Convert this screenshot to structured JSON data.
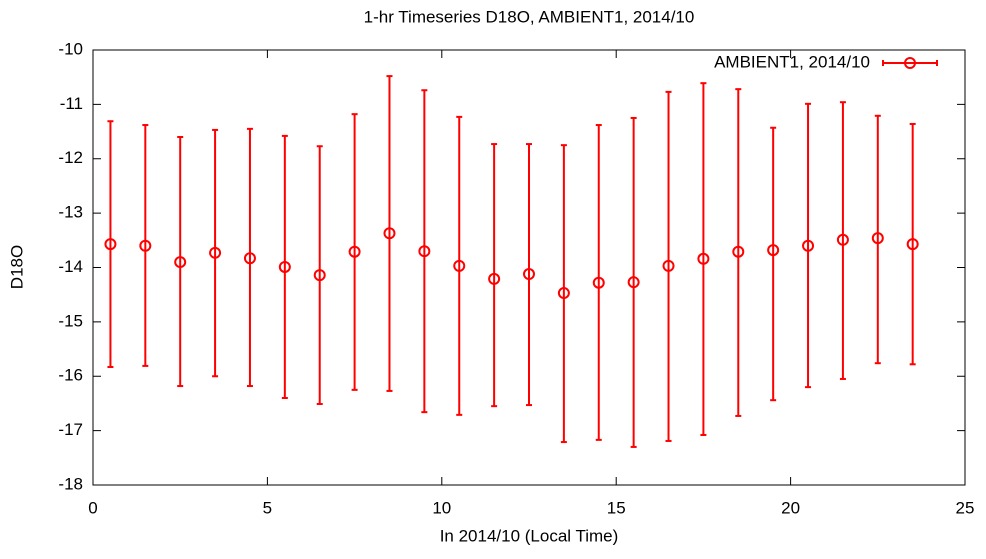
{
  "chart_data": {
    "type": "errorbar",
    "title": "1-hr Timeseries D18O, AMBIENT1, 2014/10",
    "x_label": "In 2014/10 (Local Time)",
    "y_label": "D18O",
    "xlim": [
      0,
      25
    ],
    "xticks": [
      0,
      5,
      10,
      15,
      20,
      25
    ],
    "ylim": [
      -18,
      -10
    ],
    "yticks": [
      -18,
      -17,
      -16,
      -15,
      -14,
      -13,
      -12,
      -11,
      -10
    ],
    "legend": "upper right",
    "series": [
      {
        "name": "AMBIENT1, 2014/10",
        "color": "#ff0000",
        "x": [
          0.5,
          1.5,
          2.5,
          3.5,
          4.5,
          5.5,
          6.5,
          7.5,
          8.5,
          9.5,
          10.5,
          11.5,
          12.5,
          13.5,
          14.5,
          15.5,
          16.5,
          17.5,
          18.5,
          19.5,
          20.5,
          21.5,
          22.5,
          23.5
        ],
        "values": [
          -13.57,
          -13.6,
          -13.9,
          -13.73,
          -13.83,
          -13.99,
          -14.14,
          -13.71,
          -13.37,
          -13.7,
          -13.97,
          -14.21,
          -14.12,
          -14.47,
          -14.28,
          -14.27,
          -13.97,
          -13.84,
          -13.71,
          -13.68,
          -13.6,
          -13.49,
          -13.46,
          -13.57
        ],
        "ylow": [
          -15.83,
          -15.81,
          -16.18,
          -16.0,
          -16.18,
          -16.4,
          -16.51,
          -16.25,
          -16.27,
          -16.66,
          -16.71,
          -16.55,
          -16.53,
          -17.21,
          -17.17,
          -17.3,
          -17.19,
          -17.08,
          -16.73,
          -16.44,
          -16.2,
          -16.05,
          -15.76,
          -15.78
        ],
        "yhigh": [
          -11.31,
          -11.38,
          -11.6,
          -11.47,
          -11.45,
          -11.58,
          -11.77,
          -11.18,
          -10.48,
          -10.74,
          -11.23,
          -11.73,
          -11.73,
          -11.75,
          -11.38,
          -11.25,
          -10.77,
          -10.61,
          -10.72,
          -11.43,
          -10.99,
          -10.96,
          -11.21,
          -11.36
        ]
      }
    ]
  }
}
